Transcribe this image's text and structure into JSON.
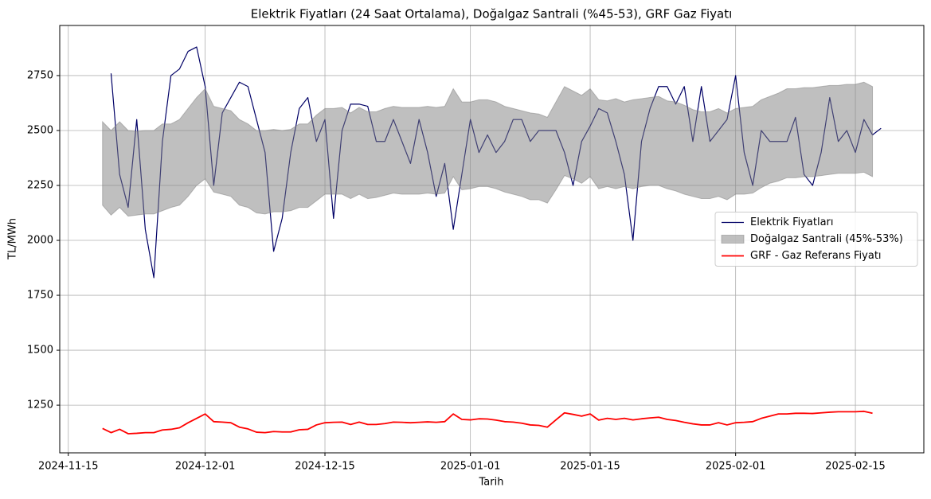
{
  "chart_data": {
    "type": "line",
    "title": "Elektrik Fiyatları (24 Saat Ortalama), Doğalgaz Santrali (%45-53), GRF Gaz Fiyatı",
    "xlabel": "Tarih",
    "ylabel": "TL/MWh",
    "x": [
      "2024-11-19",
      "2024-11-20",
      "2024-11-21",
      "2024-11-22",
      "2024-11-23",
      "2024-11-24",
      "2024-11-25",
      "2024-11-26",
      "2024-11-27",
      "2024-11-28",
      "2024-11-29",
      "2024-11-30",
      "2024-12-01",
      "2024-12-02",
      "2024-12-03",
      "2024-12-04",
      "2024-12-05",
      "2024-12-06",
      "2024-12-07",
      "2024-12-08",
      "2024-12-09",
      "2024-12-10",
      "2024-12-11",
      "2024-12-12",
      "2024-12-13",
      "2024-12-14",
      "2024-12-15",
      "2024-12-16",
      "2024-12-17",
      "2024-12-18",
      "2024-12-19",
      "2024-12-20",
      "2024-12-21",
      "2024-12-22",
      "2024-12-23",
      "2024-12-24",
      "2024-12-25",
      "2024-12-26",
      "2024-12-27",
      "2024-12-28",
      "2024-12-29",
      "2024-12-30",
      "2024-12-31",
      "2025-01-01",
      "2025-01-02",
      "2025-01-03",
      "2025-01-04",
      "2025-01-05",
      "2025-01-06",
      "2025-01-07",
      "2025-01-08",
      "2025-01-09",
      "2025-01-10",
      "2025-01-11",
      "2025-01-12",
      "2025-01-13",
      "2025-01-14",
      "2025-01-15",
      "2025-01-16",
      "2025-01-17",
      "2025-01-18",
      "2025-01-19",
      "2025-01-20",
      "2025-01-21",
      "2025-01-22",
      "2025-01-23",
      "2025-01-24",
      "2025-01-25",
      "2025-01-26",
      "2025-01-27",
      "2025-01-28",
      "2025-01-29",
      "2025-01-30",
      "2025-01-31",
      "2025-02-01",
      "2025-02-02",
      "2025-02-03",
      "2025-02-04",
      "2025-02-05",
      "2025-02-06",
      "2025-02-07",
      "2025-02-08",
      "2025-02-09",
      "2025-02-10",
      "2025-02-11",
      "2025-02-12",
      "2025-02-13",
      "2025-02-14",
      "2025-02-15",
      "2025-02-16",
      "2025-02-17",
      "2025-02-18"
    ],
    "series": [
      {
        "name": "Elektrik Fiyatları",
        "kind": "line",
        "color": "#000066",
        "width": 1.2,
        "values": [
          null,
          2760,
          2300,
          2150,
          2550,
          2050,
          1830,
          2450,
          2750,
          2780,
          2860,
          2880,
          2700,
          2250,
          2580,
          2650,
          2720,
          2700,
          2550,
          2400,
          1950,
          2100,
          2400,
          2600,
          2650,
          2450,
          2550,
          2100,
          2500,
          2620,
          2620,
          2610,
          2450,
          2450,
          2550,
          2450,
          2350,
          2550,
          2400,
          2200,
          2350,
          2050,
          2300,
          2550,
          2400,
          2480,
          2400,
          2450,
          2550,
          2550,
          2450,
          2500,
          2500,
          2500,
          2400,
          2250,
          2450,
          2520,
          2600,
          2580,
          2450,
          2300,
          2000,
          2450,
          2600,
          2700,
          2700,
          2620,
          2700,
          2450,
          2700,
          2450,
          2500,
          2550,
          2750,
          2400,
          2250,
          2500,
          2450,
          2450,
          2450,
          2560,
          2300,
          2250,
          2400,
          2650,
          2450,
          2500,
          2400,
          2550,
          2480,
          2510
        ]
      },
      {
        "name": "Doğalgaz Santrali (45%-53%)",
        "kind": "band",
        "color": "#808080",
        "upper": [
          2540,
          2500,
          2540,
          2500,
          2495,
          2500,
          2500,
          2530,
          2530,
          2550,
          2600,
          2650,
          2690,
          2610,
          2600,
          2590,
          2550,
          2530,
          2500,
          2500,
          2505,
          2500,
          2505,
          2530,
          2530,
          2570,
          2600,
          2600,
          2605,
          2580,
          2605,
          2585,
          2585,
          2600,
          2610,
          2605,
          2605,
          2605,
          2610,
          2605,
          2610,
          2690,
          2630,
          2630,
          2640,
          2640,
          2630,
          2610,
          2600,
          2590,
          2580,
          2575,
          2560,
          2630,
          2700,
          2680,
          2660,
          2690,
          2640,
          2635,
          2645,
          2630,
          2640,
          2645,
          2650,
          2655,
          2635,
          2630,
          2615,
          2595,
          2585,
          2585,
          2600,
          2580,
          2600,
          2605,
          2610,
          2640,
          2655,
          2670,
          2690,
          2690,
          2695,
          2695,
          2700,
          2705,
          2705,
          2710,
          2710,
          2720,
          2700,
          null
        ],
        "lower": [
          2160,
          2115,
          2150,
          2110,
          2115,
          2120,
          2120,
          2135,
          2150,
          2160,
          2200,
          2250,
          2280,
          2220,
          2210,
          2200,
          2160,
          2150,
          2125,
          2120,
          2130,
          2130,
          2135,
          2150,
          2150,
          2180,
          2210,
          2210,
          2210,
          2190,
          2210,
          2190,
          2195,
          2205,
          2215,
          2210,
          2210,
          2210,
          2215,
          2210,
          2215,
          2290,
          2230,
          2235,
          2245,
          2245,
          2235,
          2220,
          2210,
          2200,
          2185,
          2185,
          2170,
          2230,
          2295,
          2280,
          2260,
          2290,
          2235,
          2245,
          2235,
          2245,
          2235,
          2245,
          2250,
          2250,
          2235,
          2225,
          2210,
          2200,
          2190,
          2190,
          2200,
          2185,
          2210,
          2210,
          2215,
          2240,
          2260,
          2270,
          2285,
          2285,
          2290,
          2290,
          2295,
          2300,
          2305,
          2305,
          2305,
          2310,
          2290,
          null
        ]
      },
      {
        "name": "GRF - Gaz Referans Fiyatı",
        "kind": "line",
        "color": "#ff0000",
        "width": 1.8,
        "values": [
          1144,
          1125,
          1140,
          1120,
          1122,
          1125,
          1125,
          1137,
          1140,
          1147,
          1170,
          1190,
          1210,
          1175,
          1173,
          1170,
          1150,
          1142,
          1127,
          1125,
          1130,
          1128,
          1128,
          1138,
          1140,
          1160,
          1170,
          1172,
          1173,
          1162,
          1173,
          1162,
          1162,
          1166,
          1173,
          1172,
          1170,
          1172,
          1174,
          1172,
          1175,
          1210,
          1185,
          1183,
          1188,
          1187,
          1182,
          1175,
          1173,
          1168,
          1160,
          1158,
          1150,
          1183,
          1215,
          1208,
          1200,
          1210,
          1182,
          1190,
          1185,
          1190,
          1183,
          1188,
          1192,
          1195,
          1185,
          1180,
          1172,
          1165,
          1160,
          1160,
          1170,
          1160,
          1170,
          1172,
          1175,
          1190,
          1200,
          1210,
          1210,
          1213,
          1213,
          1212,
          1215,
          1218,
          1220,
          1220,
          1220,
          1222,
          1213,
          null
        ]
      }
    ],
    "xlim": [
      "2024-11-14",
      "2025-02-23"
    ],
    "xticks": [
      "2024-11-15",
      "2024-12-01",
      "2024-12-15",
      "2025-01-01",
      "2025-01-15",
      "2025-02-01",
      "2025-02-15"
    ],
    "ylim": [
      1033,
      2978
    ],
    "yticks": [
      1250,
      1500,
      1750,
      2000,
      2250,
      2500,
      2750
    ],
    "grid": true,
    "legend": "right"
  }
}
